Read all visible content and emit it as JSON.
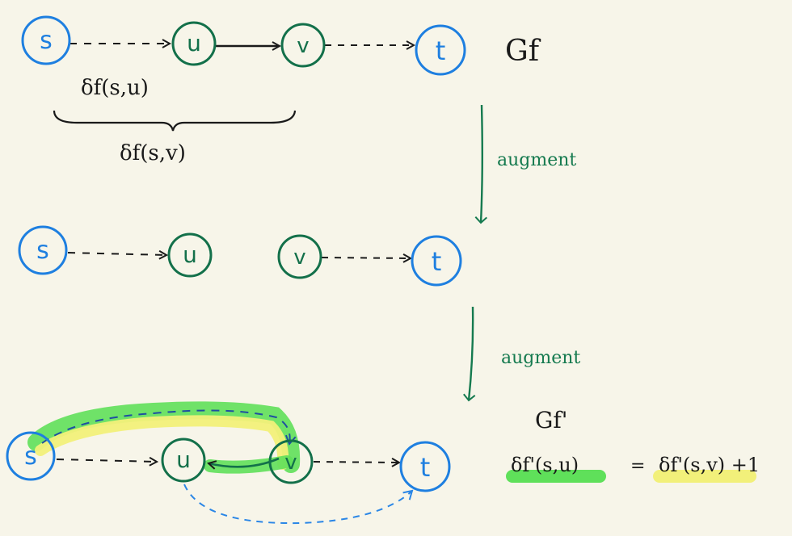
{
  "colors": {
    "background": "#f7f5e9",
    "node_blue": "#1e7fe0",
    "node_green": "#13704a",
    "edge_black": "#1a1a1a",
    "augment_green": "#157a4f",
    "highlight_green": "#5fe05a",
    "highlight_yellow": "#f2f07a",
    "path_blue": "#2a86e6"
  },
  "labels": {
    "graph_top": "Gf",
    "graph_bottom": "Gf'",
    "dist_su": "δf(s,u)",
    "dist_sv": "δf(s,v)",
    "augment_1": "augment",
    "augment_2": "augment",
    "eq_left": "δf'(s,u)",
    "eq_sign": "=",
    "eq_right": "δf'(s,v) +1"
  },
  "nodes": {
    "s": "s",
    "u": "u",
    "v": "v",
    "t": "t"
  }
}
